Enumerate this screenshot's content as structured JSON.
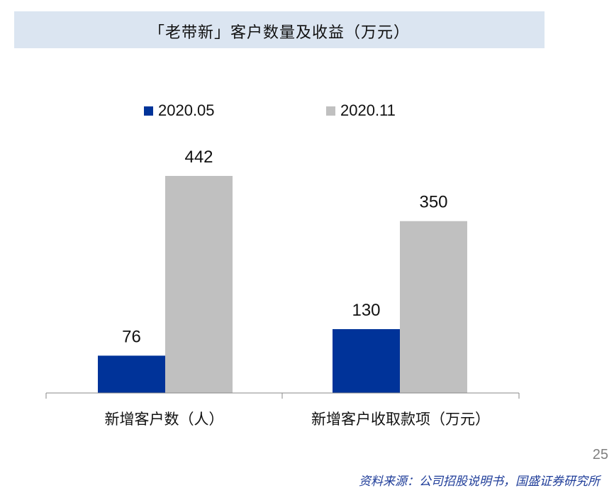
{
  "header": {
    "title": "「老带新」客户数量及收益（万元）"
  },
  "colors": {
    "series_0": "#003399",
    "series_1": "#c0c0c0",
    "title_bg": "#dbe5f1",
    "source_text": "#1f3d99",
    "page_number": "#7f7f7f"
  },
  "chart_data": {
    "type": "bar",
    "title": "「老带新」客户数量及收益（万元）",
    "categories": [
      "新增客户数（人）",
      "新增客户收取款项（万元）"
    ],
    "series": [
      {
        "name": "2020.05",
        "values": [
          76,
          130
        ]
      },
      {
        "name": "2020.11",
        "values": [
          442,
          350
        ]
      }
    ],
    "ylim": [
      0,
      550
    ],
    "grid": false,
    "legend_position": "top-center",
    "data_labels": true
  },
  "footer": {
    "page_number": "25",
    "source": "资料来源：公司招股说明书，国盛证券研究所"
  }
}
